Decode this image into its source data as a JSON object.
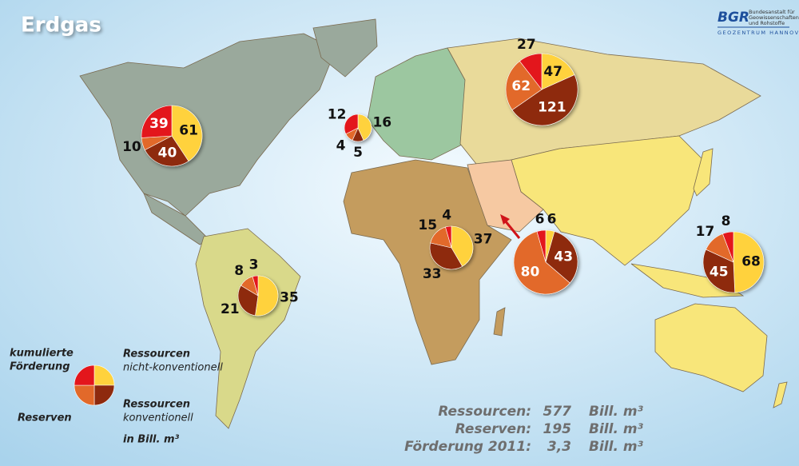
{
  "title": "Erdgas",
  "logo": {
    "abbr": "BGR",
    "lines": [
      "Bundesanstalt für",
      "Geowissenschaften",
      "und Rohstoffe"
    ],
    "sub": "GEOZENTRUM HANNOVER"
  },
  "legend": {
    "items": [
      {
        "lines": [
          "Ressourcen",
          "nicht-konventionell"
        ],
        "color": "#ffd23c"
      },
      {
        "lines": [
          "Ressourcen",
          "konventionell"
        ],
        "color": "#8e2a0e"
      },
      {
        "lines": [
          "Reserven"
        ],
        "color": "#e2692a"
      },
      {
        "lines": [
          "kumulierte",
          "Förderung"
        ],
        "color": "#e3161c"
      }
    ],
    "unit": "in Bill. m³"
  },
  "regions": [
    {
      "values": [
        61,
        40,
        10,
        39
      ]
    },
    {
      "values": [
        16,
        5,
        4,
        12
      ]
    },
    {
      "values": [
        47,
        121,
        62,
        27
      ]
    },
    {
      "values": [
        6,
        43,
        80,
        6
      ]
    },
    {
      "values": [
        37,
        33,
        15,
        4
      ]
    },
    {
      "values": [
        35,
        21,
        8,
        3
      ]
    },
    {
      "values": [
        68,
        45,
        17,
        8
      ]
    }
  ],
  "summary": [
    {
      "label": "Ressourcen:",
      "value": "577",
      "unit": "Bill. m³"
    },
    {
      "label": "Reserven:",
      "value": "195",
      "unit": "Bill. m³"
    },
    {
      "label": "Förderung 2011:",
      "value": "3,3",
      "unit": "Bill. m³"
    }
  ]
}
